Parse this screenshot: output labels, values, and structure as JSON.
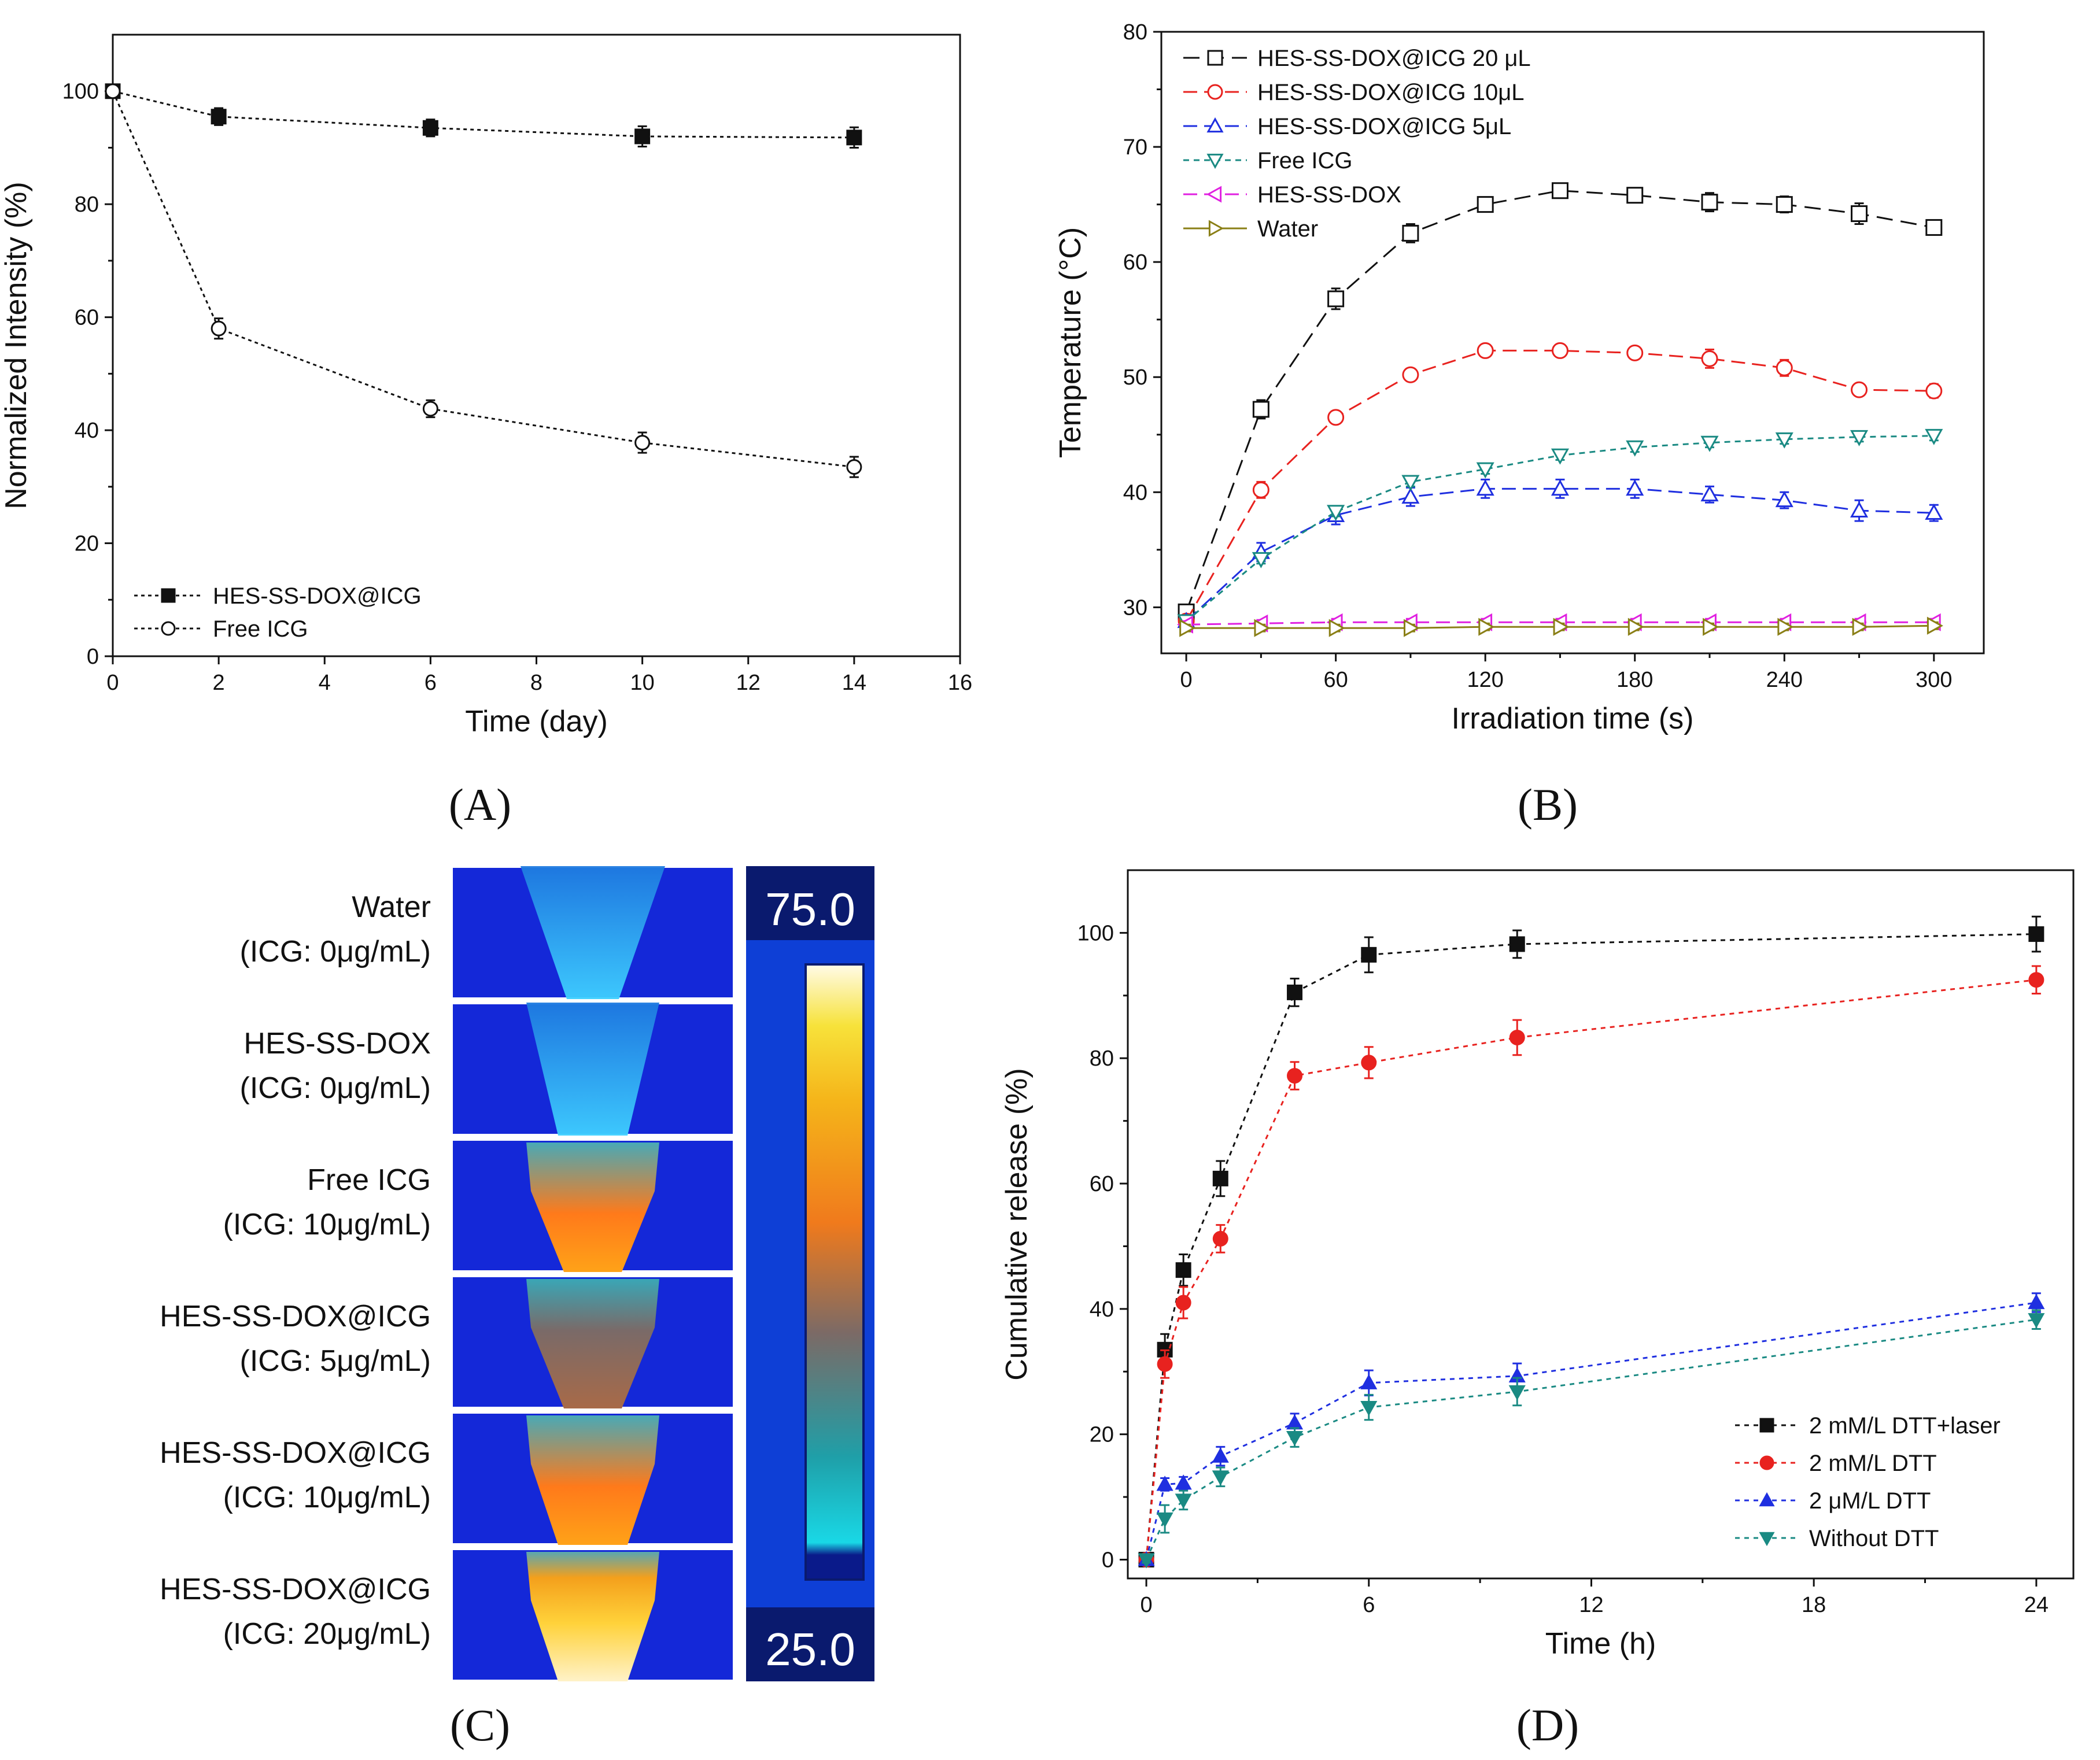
{
  "panel_labels": [
    "(A)",
    "(B)",
    "(C)",
    "(D)"
  ],
  "colors": {
    "black": "#111111",
    "red": "#e8221f",
    "blue": "#1f2fe0",
    "teal": "#1a8a83",
    "magenta": "#e020e0",
    "olive": "#8a7f16",
    "thermal_bg": "#1428d8",
    "thermal_bar": "#0e3fd6"
  },
  "chart_data": [
    {
      "panel": "A",
      "type": "line",
      "xlabel": "Time (day)",
      "ylabel": "Normalized Intensity (%)",
      "xlim": [
        0,
        16
      ],
      "ylim": [
        0,
        110
      ],
      "xticks": [
        "0",
        "2",
        "4",
        "6",
        "8",
        "10",
        "12",
        "14",
        "16"
      ],
      "yticks": [
        "0",
        "20",
        "40",
        "60",
        "80",
        "100"
      ],
      "series": [
        {
          "name": "HES-SS-DOX@ICG",
          "marker": "square-filled",
          "color": "#111111",
          "x": [
            0,
            2,
            6,
            10,
            14
          ],
          "y": [
            100,
            95.5,
            93.5,
            92.0,
            91.8
          ],
          "err": [
            1.2,
            1.5,
            1.5,
            1.8,
            1.8
          ]
        },
        {
          "name": "Free ICG",
          "marker": "circle-open",
          "color": "#111111",
          "x": [
            0,
            2,
            6,
            10,
            14
          ],
          "y": [
            100,
            58.0,
            43.8,
            37.8,
            33.5
          ],
          "err": [
            1.0,
            1.8,
            1.5,
            1.8,
            1.8
          ]
        }
      ]
    },
    {
      "panel": "B",
      "type": "line",
      "xlabel": "Irradiation time (s)",
      "ylabel": "Temperature (°C)",
      "xlim": [
        -10,
        320
      ],
      "ylim": [
        26,
        80
      ],
      "xticks": [
        "0",
        "60",
        "120",
        "180",
        "240",
        "300"
      ],
      "yticks": [
        "30",
        "40",
        "50",
        "60",
        "70",
        "80"
      ],
      "series": [
        {
          "name": "HES-SS-DOX@ICG 20 μL",
          "marker": "square-open",
          "color": "#111111",
          "dash": "28,14",
          "x": [
            0,
            30,
            60,
            90,
            120,
            150,
            180,
            210,
            240,
            270,
            300
          ],
          "y": [
            29.6,
            47.2,
            56.8,
            62.5,
            65.0,
            66.2,
            65.8,
            65.2,
            65.0,
            64.2,
            63.0
          ],
          "err": [
            0.6,
            0.8,
            0.9,
            0.8,
            0.5,
            0.6,
            0.5,
            0.8,
            0.7,
            0.9,
            0.5
          ]
        },
        {
          "name": "HES-SS-DOX@ICG 10μL",
          "marker": "circle-open",
          "color": "#e8221f",
          "dash": "24,12",
          "x": [
            0,
            30,
            60,
            90,
            120,
            150,
            180,
            210,
            240,
            270,
            300
          ],
          "y": [
            28.8,
            40.2,
            46.5,
            50.2,
            52.3,
            52.3,
            52.1,
            51.6,
            50.8,
            48.9,
            48.8
          ],
          "err": [
            0.5,
            0.7,
            0.5,
            0.5,
            0.5,
            0.4,
            0.5,
            0.8,
            0.7,
            0.5,
            0.6
          ]
        },
        {
          "name": "HES-SS-DOX@ICG 5μL",
          "marker": "triangle-up-open",
          "color": "#1f2fe0",
          "dash": "24,12",
          "x": [
            0,
            30,
            60,
            90,
            120,
            150,
            180,
            210,
            240,
            270,
            300
          ],
          "y": [
            28.8,
            34.8,
            38.0,
            39.6,
            40.3,
            40.3,
            40.3,
            39.8,
            39.3,
            38.4,
            38.2
          ],
          "err": [
            0.5,
            0.8,
            0.8,
            0.8,
            0.8,
            0.8,
            0.8,
            0.7,
            0.7,
            0.9,
            0.7
          ]
        },
        {
          "name": "Free ICG",
          "marker": "triangle-down-open",
          "color": "#1a8a83",
          "dash": "10,8",
          "x": [
            0,
            30,
            60,
            90,
            120,
            150,
            180,
            210,
            240,
            270,
            300
          ],
          "y": [
            28.8,
            34.2,
            38.3,
            40.9,
            42.0,
            43.2,
            43.9,
            44.3,
            44.6,
            44.8,
            44.9
          ],
          "err": [
            0.4,
            0.4,
            0.4,
            0.4,
            0.4,
            0.4,
            0.4,
            0.4,
            0.4,
            0.4,
            0.4
          ]
        },
        {
          "name": "HES-SS-DOX",
          "marker": "triangle-left-open",
          "color": "#e020e0",
          "dash": "24,12",
          "x": [
            0,
            30,
            60,
            90,
            120,
            150,
            180,
            210,
            240,
            270,
            300
          ],
          "y": [
            28.5,
            28.6,
            28.7,
            28.7,
            28.7,
            28.7,
            28.7,
            28.7,
            28.7,
            28.7,
            28.7
          ],
          "err": [
            0.3,
            0.3,
            0.3,
            0.3,
            0.3,
            0.3,
            0.3,
            0.3,
            0.3,
            0.3,
            0.3
          ]
        },
        {
          "name": "Water",
          "marker": "triangle-right-open",
          "color": "#8a7f16",
          "dash": "",
          "x": [
            0,
            30,
            60,
            90,
            120,
            150,
            180,
            210,
            240,
            270,
            300
          ],
          "y": [
            28.2,
            28.2,
            28.2,
            28.2,
            28.3,
            28.3,
            28.3,
            28.3,
            28.3,
            28.3,
            28.4
          ],
          "err": [
            0.3,
            0.3,
            0.3,
            0.3,
            0.3,
            0.3,
            0.3,
            0.3,
            0.3,
            0.3,
            0.3
          ]
        }
      ]
    },
    {
      "panel": "C",
      "type": "heatmap",
      "colorbar_max": "75.0",
      "colorbar_min": "25.0",
      "rows": [
        {
          "name": "Water",
          "conc": "(ICG: 0μg/mL)",
          "level": 0.05
        },
        {
          "name": "HES-SS-DOX",
          "conc": "(ICG: 0μg/mL)",
          "level": 0.08
        },
        {
          "name": "Free ICG",
          "conc": "(ICG: 10μg/mL)",
          "level": 0.42
        },
        {
          "name": "HES-SS-DOX@ICG",
          "conc": "(ICG: 5μg/mL)",
          "level": 0.28
        },
        {
          "name": "HES-SS-DOX@ICG",
          "conc": "(ICG: 10μg/mL)",
          "level": 0.58
        },
        {
          "name": "HES-SS-DOX@ICG",
          "conc": "(ICG: 20μg/mL)",
          "level": 0.9
        }
      ]
    },
    {
      "panel": "D",
      "type": "line",
      "xlabel": "Time (h)",
      "ylabel": "Cumulative release (%)",
      "xlim": [
        -0.5,
        25
      ],
      "ylim": [
        -3,
        110
      ],
      "xticks": [
        "0",
        "6",
        "12",
        "18",
        "24"
      ],
      "yticks": [
        "0",
        "20",
        "40",
        "60",
        "80",
        "100"
      ],
      "series": [
        {
          "name": "2 mM/L DTT+laser",
          "marker": "square-filled",
          "color": "#111111",
          "dash": "8,8",
          "x": [
            0,
            0.5,
            1,
            2,
            4,
            6,
            10,
            24
          ],
          "y": [
            0,
            33.5,
            46.2,
            60.8,
            90.5,
            96.5,
            98.2,
            99.8
          ],
          "err": [
            0.5,
            2.5,
            2.5,
            2.8,
            2.2,
            2.8,
            2.2,
            2.8
          ]
        },
        {
          "name": "2 mM/L DTT",
          "marker": "circle-filled",
          "color": "#e8221f",
          "dash": "8,8",
          "x": [
            0,
            0.5,
            1,
            2,
            4,
            6,
            10,
            24
          ],
          "y": [
            0,
            31.2,
            41.0,
            51.2,
            77.2,
            79.3,
            83.3,
            92.5
          ],
          "err": [
            0.5,
            2.2,
            2.5,
            2.2,
            2.2,
            2.5,
            2.8,
            2.2
          ]
        },
        {
          "name": "2 μM/L  DTT",
          "marker": "triangle-up-filled",
          "color": "#1f2fe0",
          "dash": "8,8",
          "x": [
            0,
            0.5,
            1,
            2,
            4,
            6,
            10,
            24
          ],
          "y": [
            0,
            12.0,
            12.2,
            16.5,
            21.8,
            28.2,
            29.3,
            41.0
          ],
          "err": [
            0.5,
            1.0,
            1.0,
            1.5,
            1.5,
            2.0,
            2.0,
            1.5
          ]
        },
        {
          "name": "Without DTT",
          "marker": "triangle-down-filled",
          "color": "#1a8a83",
          "dash": "8,8",
          "x": [
            0,
            0.5,
            1,
            2,
            4,
            6,
            10,
            24
          ],
          "y": [
            0,
            6.5,
            9.5,
            13.2,
            19.5,
            24.3,
            26.8,
            38.3
          ],
          "err": [
            0.5,
            2.2,
            1.5,
            1.5,
            1.5,
            2.0,
            2.2,
            1.5
          ]
        }
      ]
    }
  ]
}
